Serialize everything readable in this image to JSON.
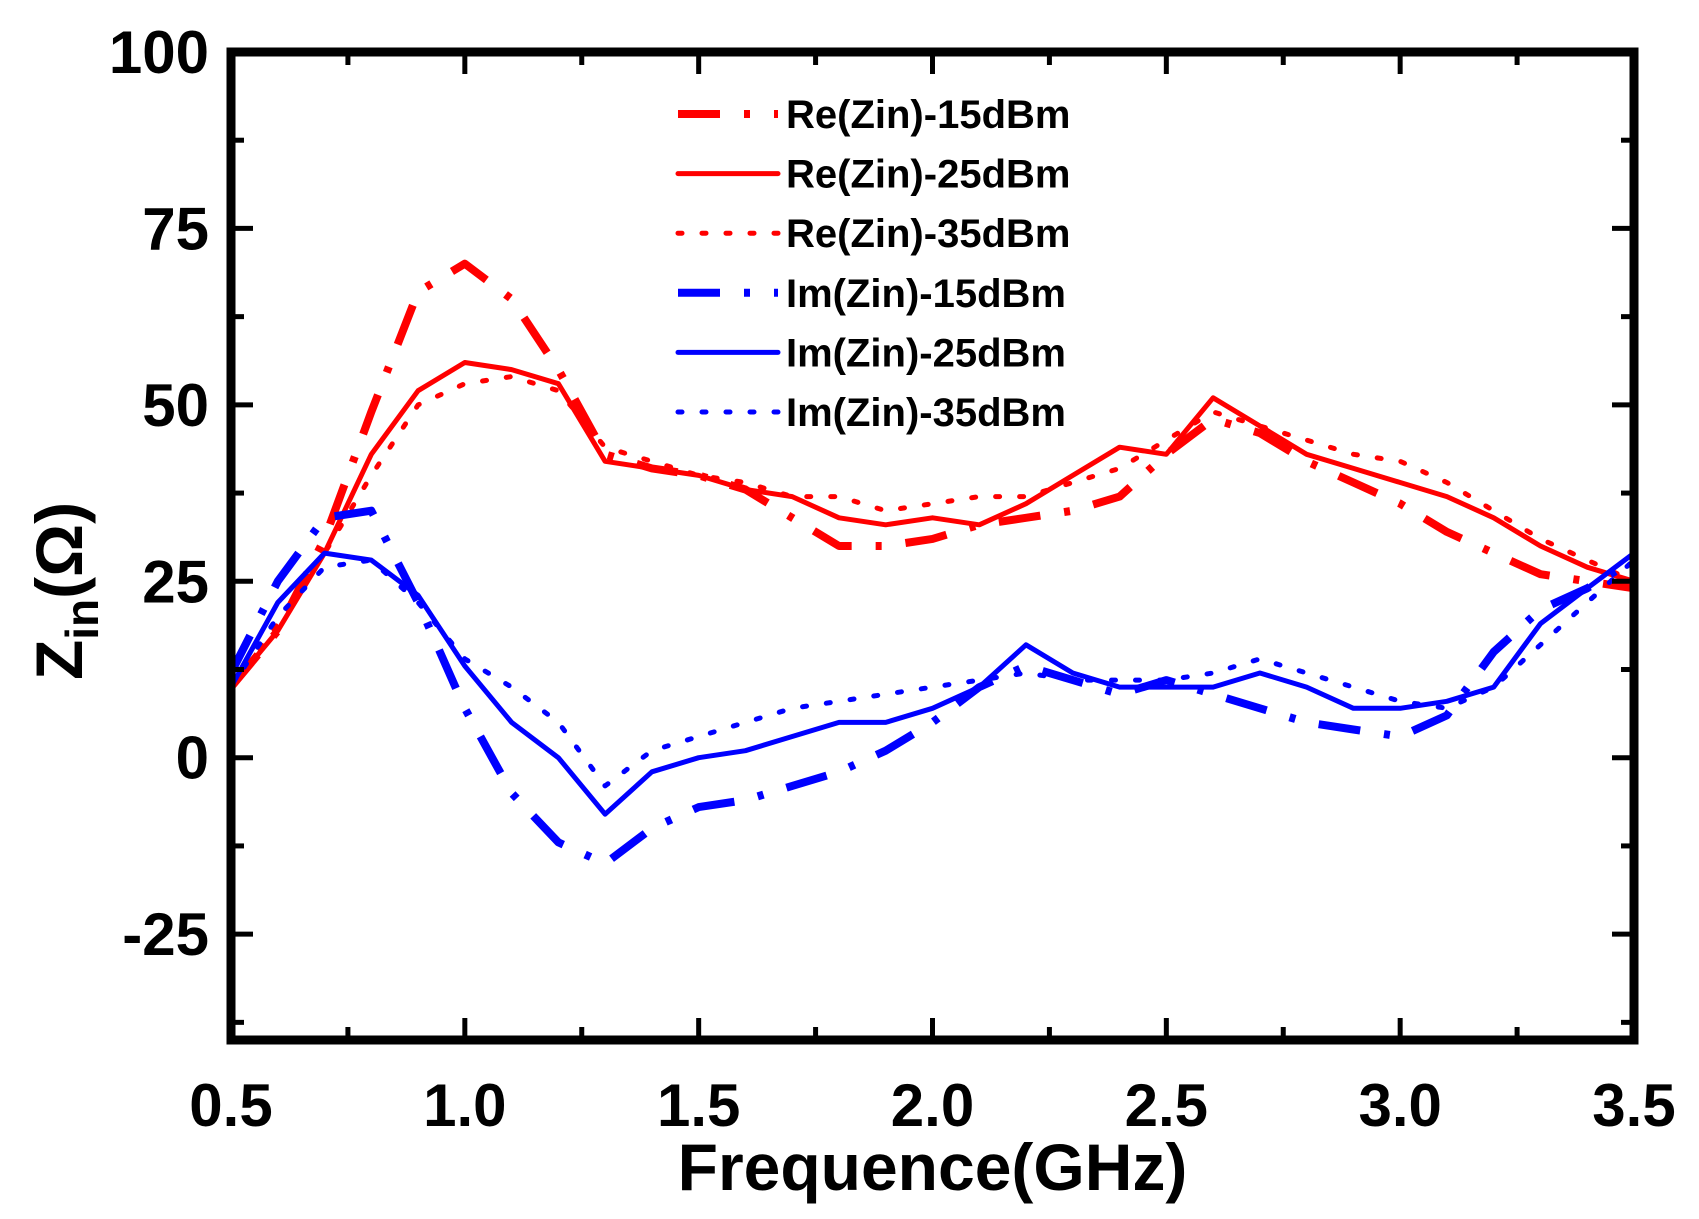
{
  "chart_data": {
    "type": "line",
    "title": "",
    "xlabel": "Frequence(GHz)",
    "ylabel_main": "Z",
    "ylabel_sub": "in",
    "ylabel_unit": "(Ω)",
    "xlim": [
      0.5,
      3.5
    ],
    "ylim": [
      -40,
      100
    ],
    "xticks": [
      0.5,
      1.0,
      1.5,
      2.0,
      2.5,
      3.0,
      3.5
    ],
    "xtick_labels": [
      "0.5",
      "1.0",
      "1.5",
      "2.0",
      "2.5",
      "3.0",
      "3.5"
    ],
    "yticks": [
      -25,
      0,
      25,
      50,
      75,
      100
    ],
    "ytick_labels": [
      "-25",
      "0",
      "25",
      "50",
      "75",
      "100"
    ],
    "legend_position": "top-center",
    "x": [
      0.5,
      0.6,
      0.7,
      0.8,
      0.9,
      1.0,
      1.1,
      1.2,
      1.3,
      1.4,
      1.5,
      1.6,
      1.7,
      1.8,
      1.9,
      2.0,
      2.1,
      2.2,
      2.3,
      2.4,
      2.5,
      2.6,
      2.7,
      2.8,
      2.9,
      3.0,
      3.1,
      3.2,
      3.3,
      3.4,
      3.5
    ],
    "series": [
      {
        "name": "Re(Zin)-15dBm",
        "color": "#ff0000",
        "style": "dash-dot",
        "values": [
          10,
          18,
          31,
          49,
          66,
          70,
          65,
          55,
          43,
          41,
          40,
          38,
          34,
          30,
          30,
          31,
          33,
          34,
          35,
          37,
          43,
          48,
          46,
          42,
          39,
          36,
          32,
          29,
          26,
          25,
          24
        ]
      },
      {
        "name": "Re(Zin)-25dBm",
        "color": "#ff0000",
        "style": "solid",
        "values": [
          10,
          18,
          29,
          43,
          52,
          56,
          55,
          53,
          42,
          41,
          40,
          38,
          37,
          34,
          33,
          34,
          33,
          36,
          40,
          44,
          43,
          51,
          47,
          43,
          41,
          39,
          37,
          34,
          30,
          27,
          25
        ]
      },
      {
        "name": "Re(Zin)-35dBm",
        "color": "#ff0000",
        "style": "dotted",
        "values": [
          10,
          19,
          29,
          40,
          50,
          53,
          54,
          52,
          44,
          42,
          40,
          39,
          37,
          37,
          35,
          36,
          37,
          37,
          39,
          41,
          45,
          49,
          47,
          45,
          43,
          42,
          39,
          35,
          31,
          28,
          25
        ]
      },
      {
        "name": "Im(Zin)-15dBm",
        "color": "#0000ff",
        "style": "dash-dot",
        "values": [
          12,
          25,
          34,
          35,
          22,
          7,
          -5,
          -12,
          -15,
          -10,
          -7,
          -6,
          -4,
          -2,
          1,
          5,
          10,
          13,
          11,
          9,
          11,
          9,
          7,
          5,
          4,
          3,
          6,
          15,
          21,
          24,
          28
        ]
      },
      {
        "name": "Im(Zin)-25dBm",
        "color": "#0000ff",
        "style": "solid",
        "values": [
          10,
          22,
          29,
          28,
          23,
          13,
          5,
          0,
          -8,
          -2,
          0,
          1,
          3,
          5,
          5,
          7,
          10,
          16,
          12,
          10,
          10,
          10,
          12,
          10,
          7,
          7,
          8,
          10,
          19,
          24,
          29
        ]
      },
      {
        "name": "Im(Zin)-35dBm",
        "color": "#0000ff",
        "style": "dotted",
        "values": [
          10,
          20,
          27,
          28,
          22,
          14,
          10,
          5,
          -4,
          1,
          3,
          5,
          7,
          8,
          9,
          10,
          11,
          12,
          11,
          11,
          11,
          12,
          14,
          12,
          10,
          8,
          7,
          10,
          16,
          22,
          28
        ]
      }
    ]
  }
}
